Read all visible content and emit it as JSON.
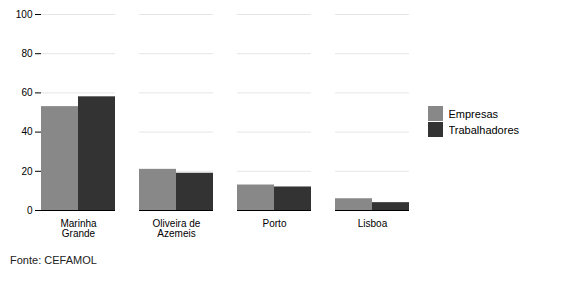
{
  "chart_data": {
    "type": "bar",
    "categories": [
      "Marinha\nGrande",
      "Oliveira de\nAzemeis",
      "Porto",
      "Lisboa"
    ],
    "series": [
      {
        "name": "Empresas",
        "color": "#888888",
        "values": [
          53,
          21,
          13,
          6
        ]
      },
      {
        "name": "Trabalhadores",
        "color": "#333333",
        "values": [
          58,
          19,
          12,
          4
        ]
      }
    ],
    "ylim": [
      0,
      100
    ],
    "yticks": [
      0,
      20,
      40,
      60,
      80,
      100
    ],
    "grid": true,
    "legend": "right",
    "annotations": [
      "Fonte: CEFAMOL"
    ]
  }
}
